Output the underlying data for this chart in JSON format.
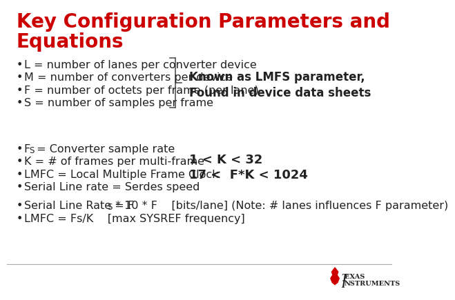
{
  "title_line1": "Key Configuration Parameters and",
  "title_line2": "Equations",
  "title_color": "#cc0000",
  "title_fontsize": 20,
  "bg_color": "#ffffff",
  "bullet_color": "#222222",
  "bullet_fontsize": 11.5,
  "section1_bullets": [
    "L = number of lanes per converter device",
    "M = number of converters per device",
    "F = number of octets per frame (per lane)",
    "S = number of samples per frame"
  ],
  "section2_bullet0_pre": "F",
  "section2_bullet0_sub": "S",
  "section2_bullet0_post": " = Converter sample rate",
  "section2_bullets_rest": [
    "K = # of frames per multi-frame",
    "LMFC = Local Multiple Frame Clock",
    "Serial Line rate = Serdes speed"
  ],
  "callout1_line1": "Known as LMFS parameter,",
  "callout1_line2": "Found in device data sheets",
  "callout1_fontsize": 12,
  "callout2_line1": "1 < K < 32",
  "callout2_line2": "17 <  F*K < 1024",
  "callout2_fontsize": 13,
  "section3_bullet0_pre": "Serial Line Rate = F",
  "section3_bullet0_sub": "S",
  "section3_bullet0_post": " * 10 * F    [bits/lane] (Note: # lanes influences F parameter)",
  "section3_bullet1": "LMFC = Fs/K    [max SYSREF frequency]",
  "footer_line_color": "#aaaaaa",
  "ti_text": "Texas Instruments",
  "ti_color": "#222222",
  "ti_logo_color": "#cc0000"
}
